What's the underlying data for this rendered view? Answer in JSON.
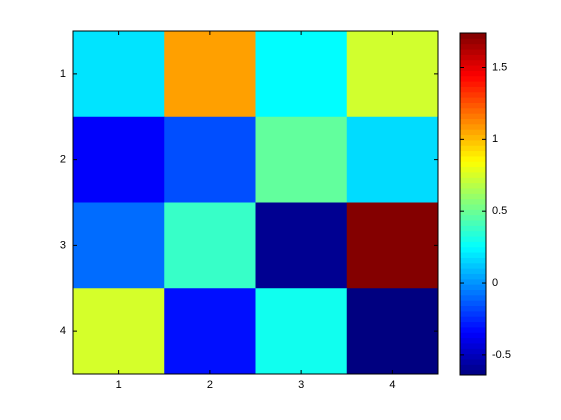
{
  "chart_data": {
    "type": "heatmap",
    "colormap": "jet",
    "x": [
      1,
      2,
      3,
      4
    ],
    "y": [
      1,
      2,
      3,
      4
    ],
    "xticks": [
      1,
      2,
      3,
      4
    ],
    "yticks": [
      1,
      2,
      3,
      4
    ],
    "values": [
      [
        0.19,
        1.07,
        0.25,
        0.74
      ],
      [
        -0.35,
        -0.16,
        0.48,
        0.17
      ],
      [
        -0.09,
        0.38,
        -0.6,
        1.73
      ],
      [
        0.75,
        -0.31,
        0.29,
        -0.64
      ]
    ],
    "clim": [
      -0.64,
      1.74
    ],
    "cticks": [
      -0.5,
      0,
      0.5,
      1,
      1.5
    ]
  }
}
